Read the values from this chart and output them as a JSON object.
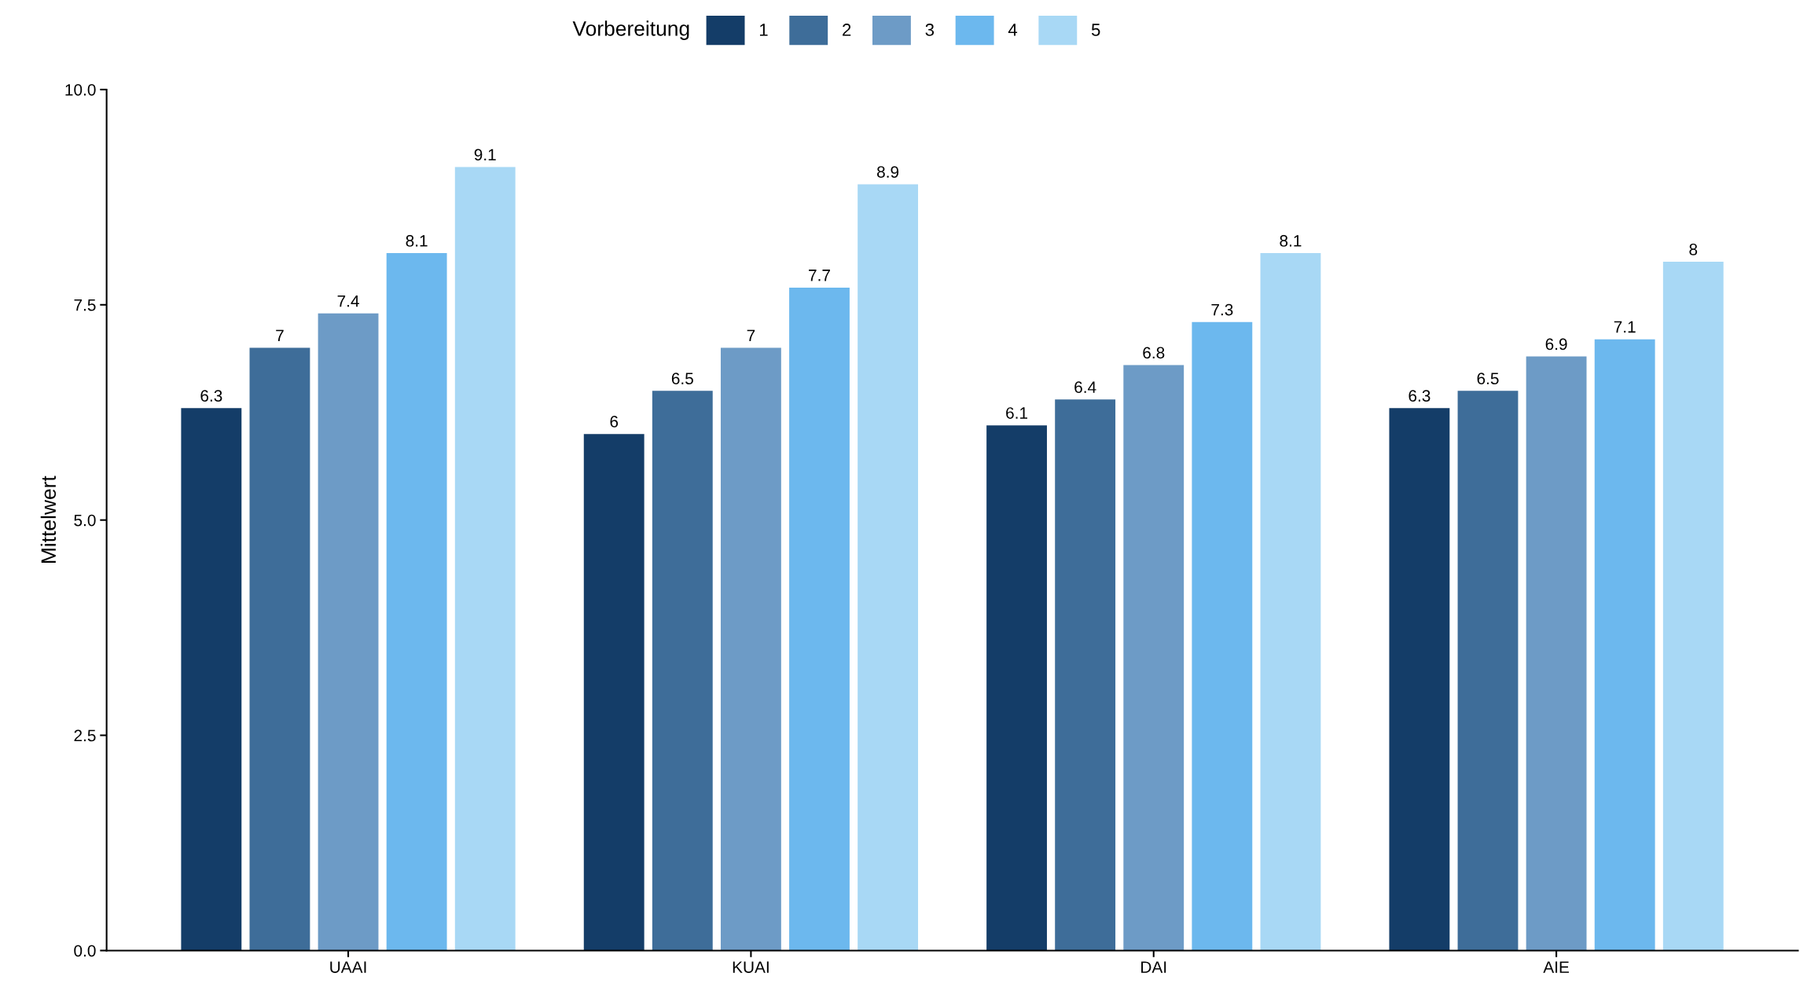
{
  "chart_data": {
    "type": "bar",
    "ylabel": "Mittelwert",
    "legend_title": "Vorbereitung",
    "categories": [
      "UAAI",
      "KUAI",
      "DAI",
      "AIE"
    ],
    "series": [
      {
        "name": "1",
        "color": "#143d68",
        "values": [
          6.3,
          6,
          6.1,
          6.3
        ]
      },
      {
        "name": "2",
        "color": "#3e6d99",
        "values": [
          7,
          6.5,
          6.4,
          6.5
        ]
      },
      {
        "name": "3",
        "color": "#6d9bc6",
        "values": [
          7.4,
          7,
          6.8,
          6.9
        ]
      },
      {
        "name": "4",
        "color": "#6cb8ee",
        "values": [
          8.1,
          7.7,
          7.3,
          7.1
        ]
      },
      {
        "name": "5",
        "color": "#a8d8f5",
        "values": [
          9.1,
          8.9,
          8.1,
          8
        ]
      }
    ],
    "ylim": [
      0,
      10
    ],
    "yticks": [
      {
        "value": 0,
        "label": "0.0"
      },
      {
        "value": 2.5,
        "label": "2.5"
      },
      {
        "value": 5,
        "label": "5.0"
      },
      {
        "value": 7.5,
        "label": "7.5"
      },
      {
        "value": 10,
        "label": "10.0"
      }
    ],
    "data_labels": true,
    "legend": "top",
    "grid": false
  }
}
